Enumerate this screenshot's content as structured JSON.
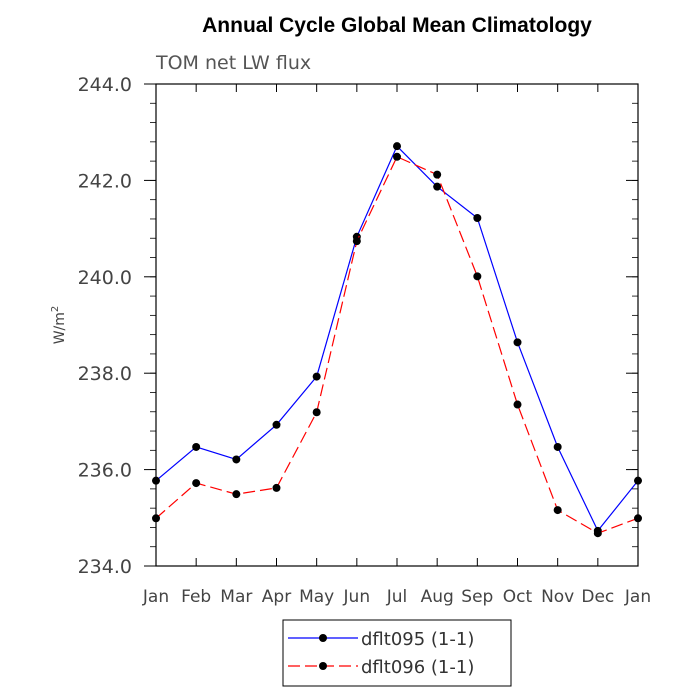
{
  "chart_data": {
    "type": "line",
    "title": "Annual Cycle Global Mean Climatology",
    "subtitle": "TOM net LW flux",
    "ylabel": "W/m",
    "ylabel_sup": "2",
    "xlabel": "",
    "categories": [
      "Jan",
      "Feb",
      "Mar",
      "Apr",
      "May",
      "Jun",
      "Jul",
      "Aug",
      "Sep",
      "Oct",
      "Nov",
      "Dec",
      "Jan"
    ],
    "ylim": [
      234.0,
      244.0
    ],
    "yticks": [
      "234.0",
      "236.0",
      "238.0",
      "240.0",
      "242.0",
      "244.0"
    ],
    "legend_position": "bottom",
    "series": [
      {
        "name": "dflt095 (1-1)",
        "color": "#0000ff",
        "dash": "solid",
        "marker": "filled-circle",
        "values": [
          235.77,
          236.47,
          236.21,
          236.93,
          237.93,
          240.83,
          242.71,
          241.87,
          241.22,
          238.64,
          236.47,
          234.73,
          235.77
        ]
      },
      {
        "name": "dflt096 (1-1)",
        "color": "#ff0000",
        "dash": "dashed",
        "marker": "filled-circle",
        "values": [
          234.99,
          235.72,
          235.49,
          235.62,
          237.19,
          240.74,
          242.49,
          242.12,
          240.01,
          237.35,
          235.16,
          234.68,
          234.99
        ]
      }
    ]
  }
}
